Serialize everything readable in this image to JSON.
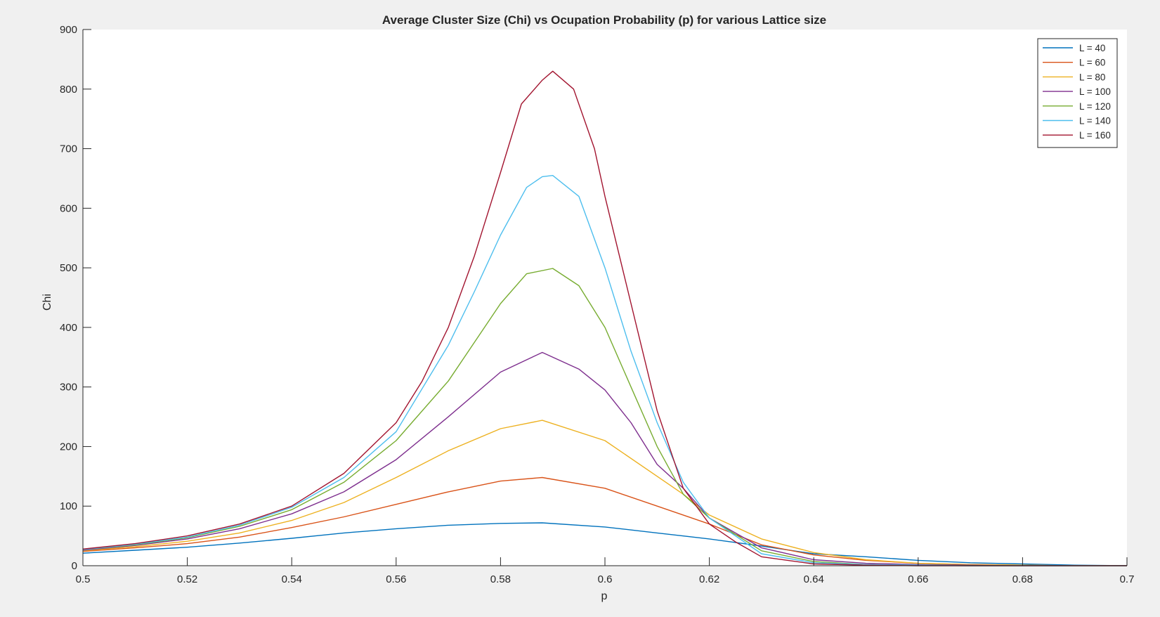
{
  "chart_data": {
    "type": "line",
    "title": "Average Cluster Size (Chi) vs Ocupation Probability (p) for various Lattice size",
    "xlabel": "p",
    "ylabel": "Chi",
    "xlim": [
      0.5,
      0.7
    ],
    "ylim": [
      0,
      900
    ],
    "xticks": [
      0.5,
      0.52,
      0.54,
      0.56,
      0.58,
      0.6,
      0.62,
      0.64,
      0.66,
      0.68,
      0.7
    ],
    "xtick_labels": [
      "0.5",
      "0.52",
      "0.54",
      "0.56",
      "0.58",
      "0.6",
      "0.62",
      "0.64",
      "0.66",
      "0.68",
      "0.7"
    ],
    "yticks": [
      0,
      100,
      200,
      300,
      400,
      500,
      600,
      700,
      800,
      900
    ],
    "ytick_labels": [
      "0",
      "100",
      "200",
      "300",
      "400",
      "500",
      "600",
      "700",
      "800",
      "900"
    ],
    "grid": false,
    "legend_position": "top-right",
    "colors": {
      "background": "#f0f0f0",
      "axes_background": "#ffffff",
      "axis": "#262626"
    },
    "series": [
      {
        "name": "L = 40",
        "color": "#0072BD",
        "x": [
          0.5,
          0.51,
          0.52,
          0.53,
          0.54,
          0.55,
          0.56,
          0.57,
          0.58,
          0.588,
          0.6,
          0.61,
          0.62,
          0.63,
          0.64,
          0.65,
          0.66,
          0.67,
          0.68,
          0.69,
          0.7
        ],
        "y": [
          21,
          26,
          31,
          38,
          46,
          55,
          62,
          68,
          71,
          72,
          65,
          55,
          45,
          33,
          20,
          15,
          9,
          5,
          3,
          1,
          0
        ]
      },
      {
        "name": "L = 60",
        "color": "#D95319",
        "x": [
          0.5,
          0.51,
          0.52,
          0.53,
          0.54,
          0.55,
          0.56,
          0.57,
          0.58,
          0.588,
          0.6,
          0.61,
          0.62,
          0.63,
          0.64,
          0.65,
          0.66,
          0.67,
          0.68,
          0.69,
          0.7
        ],
        "y": [
          24,
          30,
          37,
          48,
          64,
          82,
          103,
          124,
          142,
          148,
          130,
          100,
          70,
          35,
          18,
          9,
          4,
          2,
          1,
          0,
          0
        ]
      },
      {
        "name": "L = 80",
        "color": "#EDB120",
        "x": [
          0.5,
          0.51,
          0.52,
          0.53,
          0.54,
          0.55,
          0.56,
          0.57,
          0.58,
          0.588,
          0.6,
          0.61,
          0.615,
          0.62,
          0.63,
          0.64,
          0.65,
          0.66,
          0.67,
          0.68,
          0.69,
          0.7
        ],
        "y": [
          25,
          32,
          41,
          55,
          76,
          106,
          148,
          193,
          230,
          244,
          210,
          150,
          120,
          85,
          45,
          22,
          10,
          4,
          2,
          1,
          0,
          0
        ]
      },
      {
        "name": "L = 100",
        "color": "#7E2F8E",
        "x": [
          0.5,
          0.51,
          0.52,
          0.53,
          0.54,
          0.55,
          0.56,
          0.57,
          0.58,
          0.588,
          0.595,
          0.6,
          0.605,
          0.61,
          0.615,
          0.62,
          0.63,
          0.64,
          0.65,
          0.66,
          0.67,
          0.68,
          0.69,
          0.7
        ],
        "y": [
          26,
          34,
          45,
          62,
          87,
          124,
          178,
          250,
          325,
          358,
          330,
          295,
          240,
          170,
          130,
          80,
          30,
          10,
          4,
          2,
          1,
          0,
          0,
          0
        ]
      },
      {
        "name": "L = 120",
        "color": "#77AC30",
        "x": [
          0.5,
          0.51,
          0.52,
          0.53,
          0.54,
          0.55,
          0.56,
          0.57,
          0.58,
          0.585,
          0.59,
          0.595,
          0.6,
          0.605,
          0.61,
          0.615,
          0.62,
          0.63,
          0.64,
          0.65,
          0.66,
          0.67,
          0.68,
          0.7
        ],
        "y": [
          27,
          35,
          47,
          66,
          94,
          140,
          210,
          310,
          440,
          490,
          499,
          470,
          400,
          300,
          200,
          120,
          80,
          25,
          7,
          2,
          1,
          0,
          0,
          0
        ]
      },
      {
        "name": "L = 140",
        "color": "#4DBEEE",
        "x": [
          0.5,
          0.51,
          0.52,
          0.53,
          0.54,
          0.55,
          0.56,
          0.57,
          0.575,
          0.58,
          0.585,
          0.588,
          0.59,
          0.595,
          0.6,
          0.605,
          0.61,
          0.615,
          0.62,
          0.63,
          0.64,
          0.65,
          0.66,
          0.67,
          0.68,
          0.7
        ],
        "y": [
          27,
          36,
          48,
          68,
          98,
          148,
          225,
          370,
          460,
          555,
          635,
          653,
          655,
          620,
          500,
          360,
          240,
          140,
          80,
          20,
          5,
          2,
          1,
          0,
          0,
          0
        ]
      },
      {
        "name": "L = 160",
        "color": "#A2142F",
        "x": [
          0.5,
          0.51,
          0.52,
          0.53,
          0.54,
          0.55,
          0.56,
          0.565,
          0.57,
          0.575,
          0.58,
          0.584,
          0.588,
          0.59,
          0.594,
          0.598,
          0.6,
          0.605,
          0.61,
          0.615,
          0.62,
          0.625,
          0.63,
          0.64,
          0.65,
          0.66,
          0.67,
          0.68,
          0.7
        ],
        "y": [
          28,
          37,
          50,
          70,
          100,
          155,
          240,
          310,
          400,
          520,
          660,
          775,
          815,
          830,
          800,
          700,
          620,
          440,
          260,
          130,
          70,
          40,
          15,
          3,
          1,
          0,
          0,
          0,
          0
        ]
      }
    ]
  }
}
